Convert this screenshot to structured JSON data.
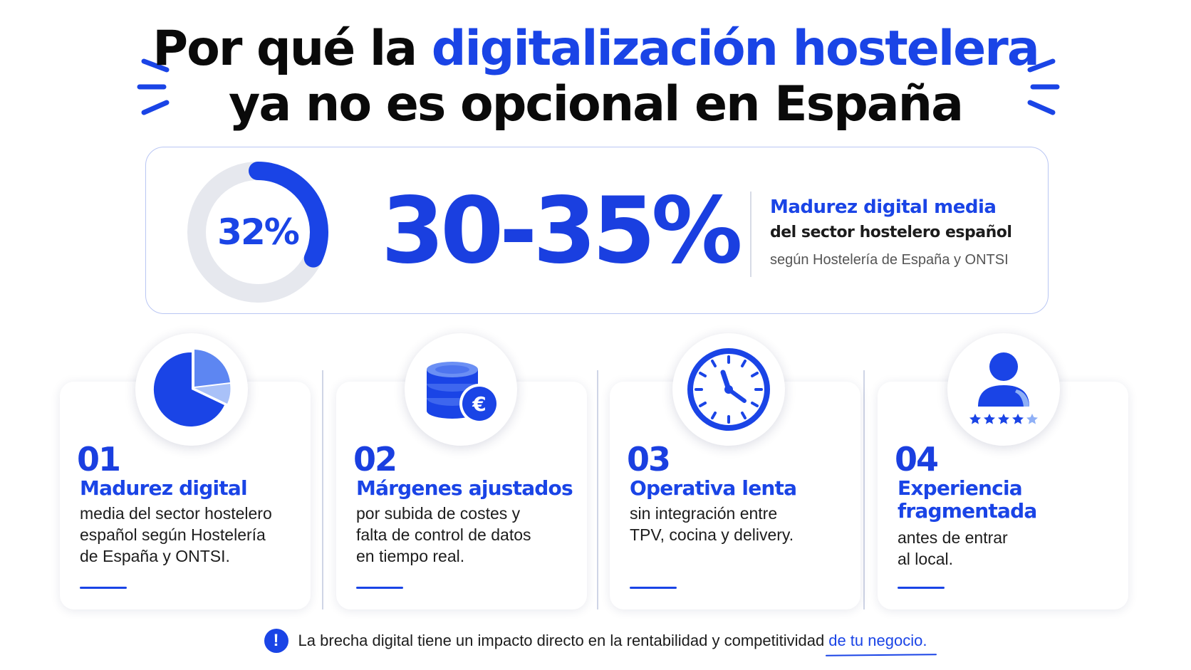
{
  "title": {
    "line1_prefix": "Por qué la ",
    "line1_accent": "digitalización hostelera",
    "line2": "ya no es opcional en España"
  },
  "hero": {
    "donut_percent": 32,
    "donut_label": "32%",
    "range_value": "30-35%",
    "heading": "Madurez digital media",
    "subheading": "del sector hostelero español",
    "source": "según Hostelería de España y ONTSI"
  },
  "cards": [
    {
      "icon": "pie-chart-icon",
      "number": "01",
      "title": "Madurez digital",
      "desc": [
        "media del sector hostelero",
        "español según Hostelería",
        "de España y ONTSI."
      ]
    },
    {
      "icon": "coins-euro-icon",
      "number": "02",
      "title": "Márgenes ajustados",
      "desc": [
        "por subida de costes y",
        "falta de control de datos",
        "en tiempo real."
      ]
    },
    {
      "icon": "clock-icon",
      "number": "03",
      "title": "Operativa lenta",
      "desc": [
        "sin integración entre",
        "TPV, cocina y delivery."
      ]
    },
    {
      "icon": "customer-rating-icon",
      "number": "04",
      "title": "Experiencia fragmentada",
      "title_lines": [
        "Experiencia",
        "fragmentada"
      ],
      "desc": [
        "antes de entrar",
        "al local."
      ]
    }
  ],
  "footer": {
    "icon": "alert-icon",
    "alert_glyph": "!",
    "text": "La brecha digital tiene un impacto directo en la rentabilidad y competitividad",
    "highlight": "de tu negocio."
  },
  "colors": {
    "accent": "#1a44e6",
    "light_accent": "#7ea6f5",
    "track": "#e6e8ee",
    "text": "#111111"
  }
}
